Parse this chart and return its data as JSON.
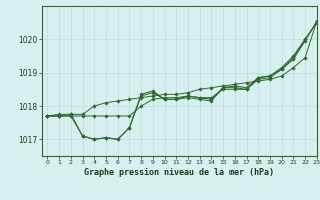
{
  "background_color": "#d8eff0",
  "grid_color": "#b8dde0",
  "line_color": "#2d6a2d",
  "text_color": "#1a3d1a",
  "xlabel": "Graphe pression niveau de la mer (hPa)",
  "xlim": [
    -0.5,
    23
  ],
  "ylim": [
    1016.5,
    1021.0
  ],
  "yticks": [
    1017,
    1018,
    1019,
    1020
  ],
  "xticks": [
    0,
    1,
    2,
    3,
    4,
    5,
    6,
    7,
    8,
    9,
    10,
    11,
    12,
    13,
    14,
    15,
    16,
    17,
    18,
    19,
    20,
    21,
    22,
    23
  ],
  "line1": [
    1017.7,
    1017.7,
    1017.75,
    1017.1,
    1017.0,
    1017.05,
    1017.0,
    1017.35,
    1018.35,
    1018.45,
    1018.2,
    1018.2,
    1018.3,
    1018.25,
    1018.2,
    1018.55,
    1018.6,
    1018.55,
    1018.85,
    1018.9,
    1019.15,
    1019.5,
    1020.0,
    1020.5
  ],
  "line2": [
    1017.7,
    1017.75,
    1017.75,
    1017.75,
    1018.0,
    1018.1,
    1018.15,
    1018.2,
    1018.25,
    1018.3,
    1018.35,
    1018.35,
    1018.4,
    1018.5,
    1018.55,
    1018.6,
    1018.65,
    1018.7,
    1018.75,
    1018.8,
    1018.9,
    1019.15,
    1019.45,
    1020.55
  ],
  "line3": [
    1017.7,
    1017.7,
    1017.7,
    1017.7,
    1017.7,
    1017.7,
    1017.7,
    1017.7,
    1018.0,
    1018.2,
    1018.25,
    1018.25,
    1018.3,
    1018.25,
    1018.25,
    1018.5,
    1018.5,
    1018.5,
    1018.8,
    1018.85,
    1019.1,
    1019.45,
    1020.0,
    1020.5
  ],
  "line4": [
    1017.7,
    1017.7,
    1017.7,
    1017.1,
    1017.0,
    1017.05,
    1017.0,
    1017.35,
    1018.3,
    1018.4,
    1018.2,
    1018.2,
    1018.25,
    1018.2,
    1018.15,
    1018.55,
    1018.55,
    1018.5,
    1018.85,
    1018.9,
    1019.1,
    1019.4,
    1019.95,
    1020.55
  ]
}
